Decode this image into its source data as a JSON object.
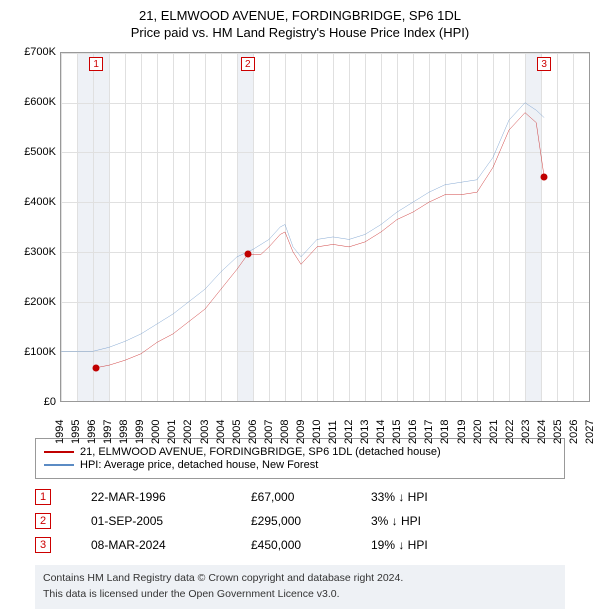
{
  "header": {
    "title": "21, ELMWOOD AVENUE, FORDINGBRIDGE, SP6 1DL",
    "subtitle": "Price paid vs. HM Land Registry's House Price Index (HPI)"
  },
  "chart": {
    "type": "line",
    "background_color": "#ffffff",
    "grid_color": "#e0e0e0",
    "shade_color": "#eef1f6",
    "axis_color": "#999999",
    "ylim": [
      0,
      700000
    ],
    "ytick_step": 100000,
    "yticks": [
      "£0",
      "£100K",
      "£200K",
      "£300K",
      "£400K",
      "£500K",
      "£600K",
      "£700K"
    ],
    "xlim": [
      1994,
      2027
    ],
    "xtick_step": 1,
    "xticks": [
      "1994",
      "1995",
      "1996",
      "1997",
      "1998",
      "1999",
      "2000",
      "2001",
      "2002",
      "2003",
      "2004",
      "2005",
      "2006",
      "2007",
      "2008",
      "2009",
      "2010",
      "2011",
      "2012",
      "2013",
      "2014",
      "2015",
      "2016",
      "2017",
      "2018",
      "2019",
      "2020",
      "2021",
      "2022",
      "2023",
      "2024",
      "2025",
      "2026",
      "2027"
    ],
    "shaded_ranges": [
      [
        1995,
        1997
      ],
      [
        2005,
        2006
      ],
      [
        2023,
        2024
      ]
    ],
    "series": [
      {
        "name": "property",
        "label": "21, ELMWOOD AVENUE, FORDINGBRIDGE, SP6 1DL (detached house)",
        "color": "#c00000",
        "line_width": 1.5,
        "data_x": [
          1996.2,
          1997,
          1998,
          1999,
          2000,
          2001,
          2002,
          2003,
          2004,
          2005,
          2005.67,
          2006.5,
          2007,
          2007.7,
          2008,
          2008.5,
          2009,
          2010,
          2011,
          2012,
          2013,
          2014,
          2015,
          2016,
          2017,
          2018,
          2019,
          2020,
          2021,
          2022,
          2023,
          2023.7,
          2024.2
        ],
        "data_y": [
          67000,
          72000,
          82000,
          95000,
          118000,
          135000,
          160000,
          185000,
          225000,
          265000,
          295000,
          295000,
          310000,
          335000,
          340000,
          300000,
          275000,
          310000,
          315000,
          310000,
          320000,
          340000,
          365000,
          380000,
          400000,
          415000,
          415000,
          420000,
          470000,
          545000,
          580000,
          560000,
          450000
        ]
      },
      {
        "name": "hpi",
        "label": "HPI: Average price, detached house, New Forest",
        "color": "#5b8bc4",
        "line_width": 1.5,
        "data_x": [
          1994,
          1995,
          1996,
          1997,
          1998,
          1999,
          2000,
          2001,
          2002,
          2003,
          2004,
          2005,
          2006,
          2007,
          2007.7,
          2008,
          2008.5,
          2009,
          2010,
          2011,
          2012,
          2013,
          2014,
          2015,
          2016,
          2017,
          2018,
          2019,
          2020,
          2021,
          2022,
          2023,
          2023.7,
          2024.2
        ],
        "data_y": [
          100000,
          100000,
          100000,
          108000,
          120000,
          135000,
          155000,
          175000,
          200000,
          225000,
          260000,
          290000,
          305000,
          325000,
          350000,
          355000,
          310000,
          290000,
          325000,
          330000,
          325000,
          335000,
          355000,
          380000,
          400000,
          420000,
          435000,
          440000,
          445000,
          490000,
          565000,
          600000,
          585000,
          570000
        ]
      }
    ],
    "markers": [
      {
        "num": "1",
        "x": 1996.2,
        "y": 67000
      },
      {
        "num": "2",
        "x": 2005.67,
        "y": 295000
      },
      {
        "num": "3",
        "x": 2024.2,
        "y": 450000
      }
    ],
    "marker_dot_color": "#c00000"
  },
  "legend": {
    "rows": [
      {
        "color": "#c00000",
        "label": "21, ELMWOOD AVENUE, FORDINGBRIDGE, SP6 1DL (detached house)"
      },
      {
        "color": "#5b8bc4",
        "label": "HPI: Average price, detached house, New Forest"
      }
    ]
  },
  "marker_table": {
    "rows": [
      {
        "num": "1",
        "date": "22-MAR-1996",
        "price": "£67,000",
        "diff": "33% ↓ HPI"
      },
      {
        "num": "2",
        "date": "01-SEP-2005",
        "price": "£295,000",
        "diff": "3% ↓ HPI"
      },
      {
        "num": "3",
        "date": "08-MAR-2024",
        "price": "£450,000",
        "diff": "19% ↓ HPI"
      }
    ]
  },
  "footer": {
    "line1": "Contains HM Land Registry data © Crown copyright and database right 2024.",
    "line2": "This data is licensed under the Open Government Licence v3.0."
  }
}
